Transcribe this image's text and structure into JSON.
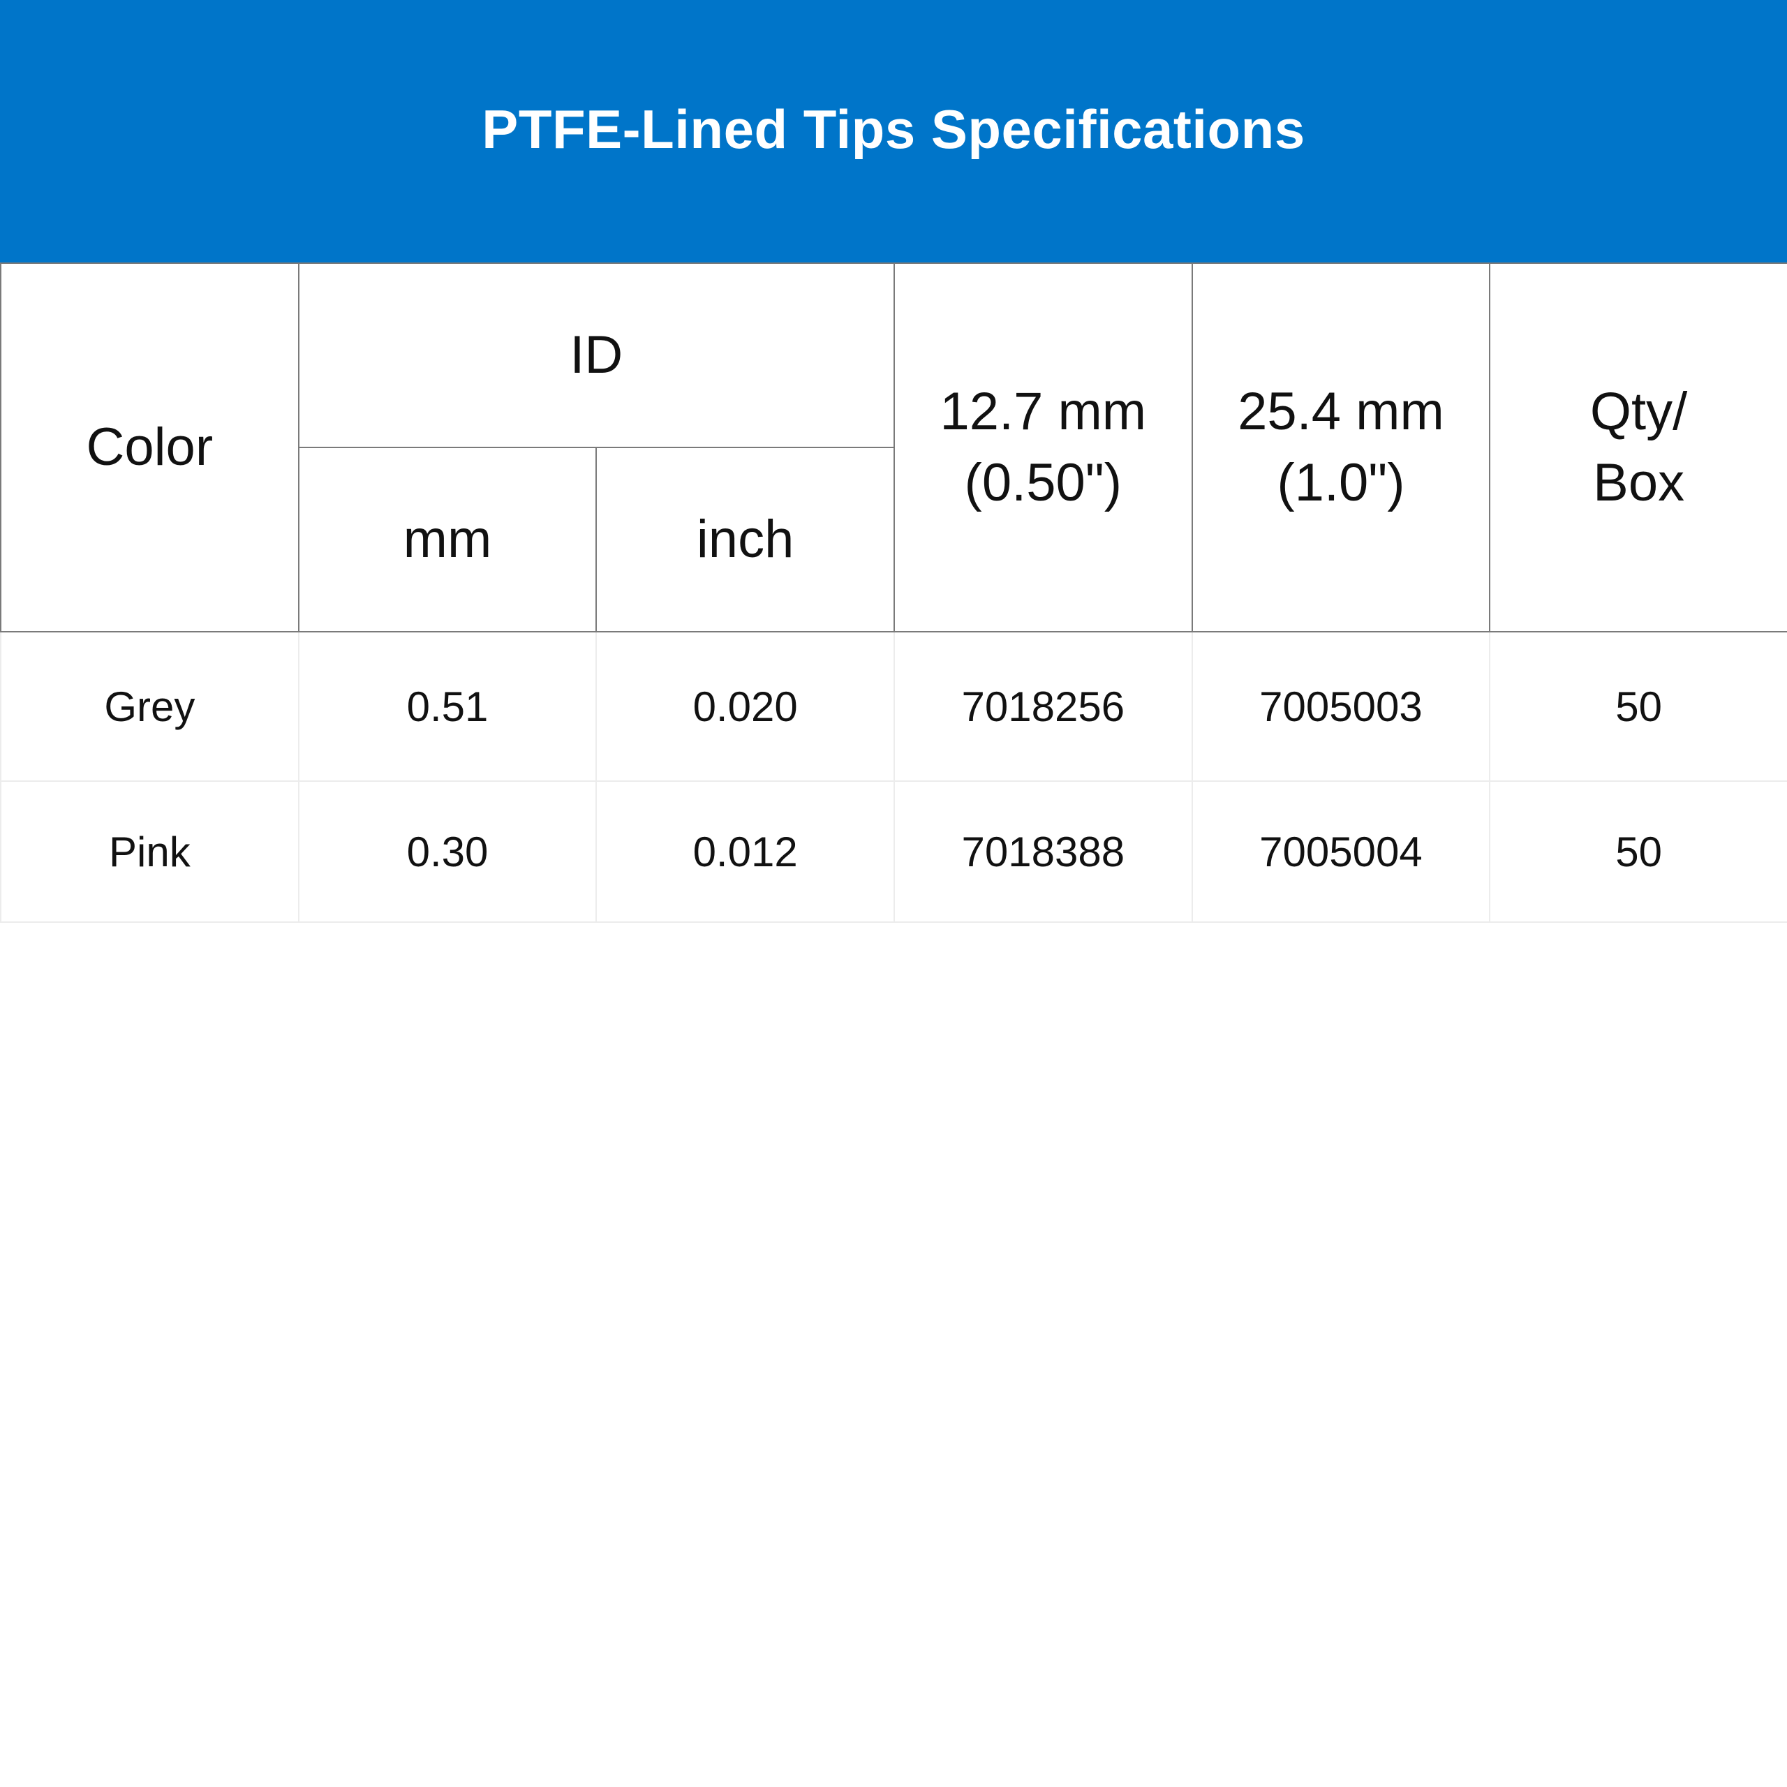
{
  "title": "PTFE-Lined Tips Specifications",
  "colors": {
    "banner": "#0075c9",
    "banner_text": "#ffffff"
  },
  "table": {
    "headers": {
      "color": "Color",
      "id": "ID",
      "id_mm": "mm",
      "id_inch": "inch",
      "len_127_line1": "12.7 mm",
      "len_127_line2": "(0.50\")",
      "len_254_line1": "25.4 mm",
      "len_254_line2": "(1.0\")",
      "qty_line1": "Qty/",
      "qty_line2": "Box"
    },
    "rows": [
      {
        "color": "Grey",
        "mm": "0.51",
        "inch": "0.020",
        "p127": "7018256",
        "p254": "7005003",
        "qty": "50"
      },
      {
        "color": "Pink",
        "mm": "0.30",
        "inch": "0.012",
        "p127": "7018388",
        "p254": "7005004",
        "qty": "50"
      }
    ]
  }
}
